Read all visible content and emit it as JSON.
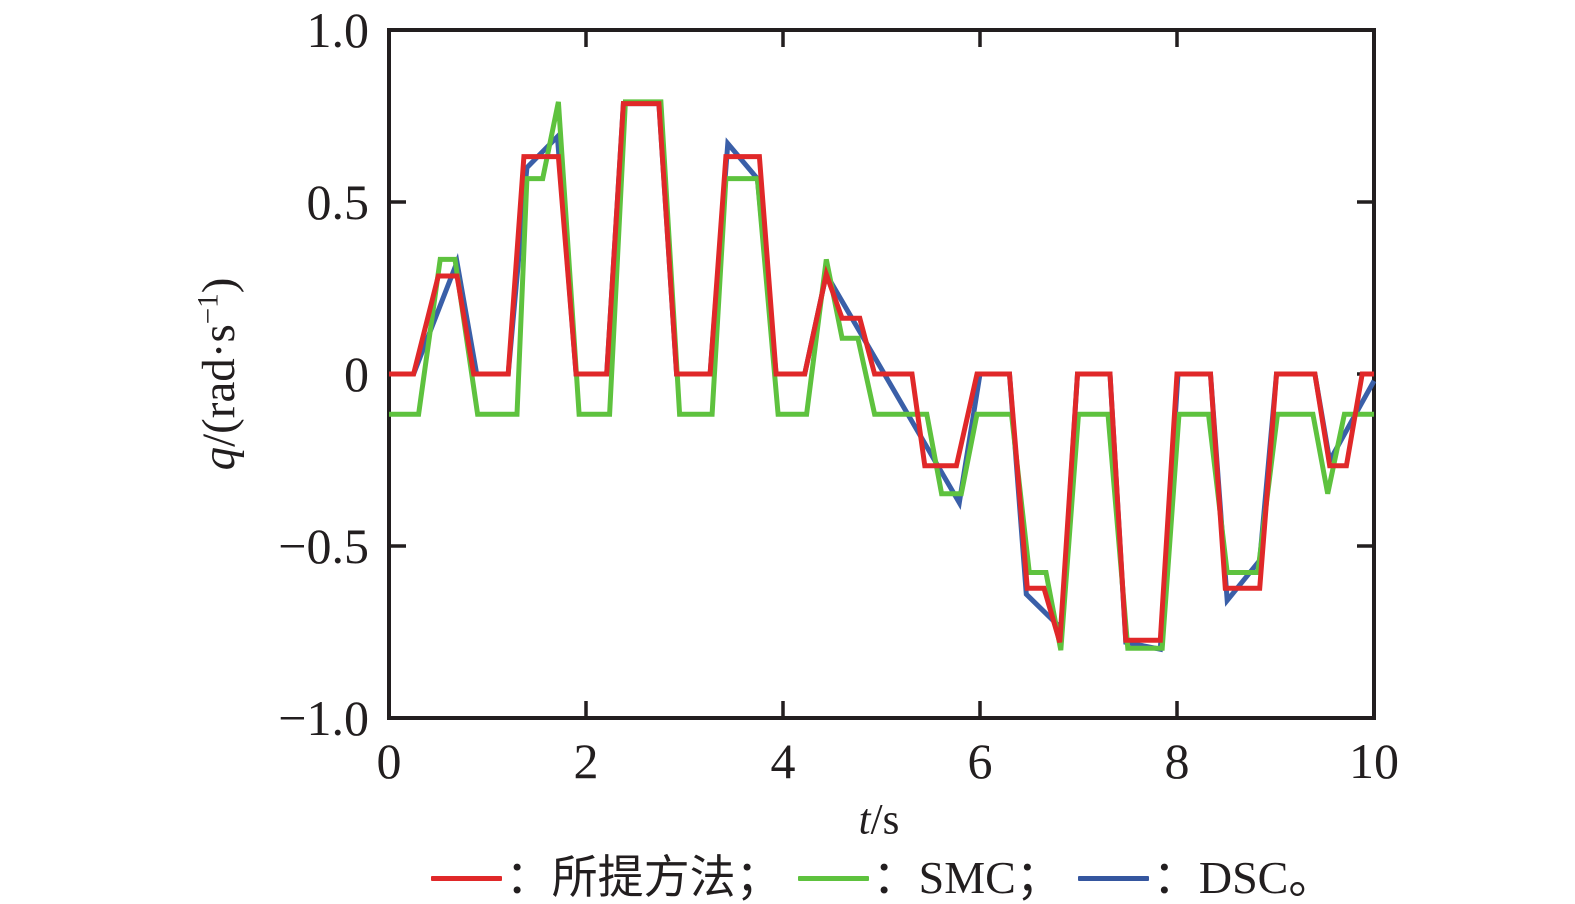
{
  "figure": {
    "xlabel": {
      "italic_part": "t",
      "rest": "/s"
    },
    "ylabel": {
      "italic_part": "q",
      "mid": "/(rad·s",
      "sup": "−1",
      "post": ")"
    }
  },
  "legend": [
    {
      "name": "proposed-method",
      "label": "：所提方法；",
      "color": "#e02829"
    },
    {
      "name": "smc",
      "label": "：SMC；",
      "color": "#5ec23e"
    },
    {
      "name": "dsc",
      "label": "：DSC。",
      "color": "#35569f"
    }
  ],
  "axes": {
    "box_color": "#221e1f",
    "tick_length": 17,
    "tick_label_color": "#221e1f"
  },
  "chart_data": {
    "type": "line",
    "title": "",
    "xlabel": "t/s",
    "ylabel": "q/(rad·s−1)",
    "xlim": [
      0,
      10
    ],
    "ylim": [
      -1.0,
      1.0
    ],
    "grid": false,
    "legend_position": "below",
    "xticks": {
      "values": [
        0,
        2,
        4,
        6,
        8,
        10
      ],
      "labels": [
        "0",
        "2",
        "4",
        "6",
        "8",
        "10"
      ]
    },
    "yticks": {
      "values": [
        1.0,
        0.5,
        0,
        -0.5,
        -1.0
      ],
      "labels": [
        "1.0",
        "0.5",
        "0",
        "−0.5",
        "−1.0"
      ]
    },
    "series": [
      {
        "name": "所提方法",
        "color": "#e02829",
        "points": [
          [
            0,
            0
          ],
          [
            0.25,
            0
          ],
          [
            0.5,
            0.285
          ],
          [
            0.69,
            0.285
          ],
          [
            0.86,
            0
          ],
          [
            1.21,
            0
          ],
          [
            1.37,
            0.632
          ],
          [
            1.72,
            0.632
          ],
          [
            1.9,
            0
          ],
          [
            2.21,
            0
          ],
          [
            2.38,
            0.786
          ],
          [
            2.74,
            0.786
          ],
          [
            2.92,
            0
          ],
          [
            3.26,
            0
          ],
          [
            3.42,
            0.632
          ],
          [
            3.76,
            0.632
          ],
          [
            3.93,
            0
          ],
          [
            4.22,
            0
          ],
          [
            4.44,
            0.29
          ],
          [
            4.6,
            0.162
          ],
          [
            4.78,
            0.162
          ],
          [
            4.93,
            0
          ],
          [
            5.31,
            0
          ],
          [
            5.44,
            -0.267
          ],
          [
            5.76,
            -0.267
          ],
          [
            5.97,
            0
          ],
          [
            6.3,
            0
          ],
          [
            6.48,
            -0.623
          ],
          [
            6.65,
            -0.623
          ],
          [
            6.81,
            -0.78
          ],
          [
            6.99,
            0
          ],
          [
            7.32,
            0
          ],
          [
            7.48,
            -0.774
          ],
          [
            7.83,
            -0.774
          ],
          [
            8.0,
            0
          ],
          [
            8.34,
            0
          ],
          [
            8.49,
            -0.623
          ],
          [
            8.84,
            -0.623
          ],
          [
            9.01,
            0
          ],
          [
            9.4,
            0
          ],
          [
            9.55,
            -0.267
          ],
          [
            9.72,
            -0.267
          ],
          [
            9.88,
            0
          ],
          [
            10,
            0
          ]
        ]
      },
      {
        "name": "SMC",
        "color": "#5ec23e",
        "points": [
          [
            0,
            -0.117
          ],
          [
            0.3,
            -0.117
          ],
          [
            0.52,
            0.333
          ],
          [
            0.67,
            0.333
          ],
          [
            0.9,
            -0.117
          ],
          [
            1.3,
            -0.117
          ],
          [
            1.4,
            0.568
          ],
          [
            1.56,
            0.568
          ],
          [
            1.72,
            0.791
          ],
          [
            1.93,
            -0.117
          ],
          [
            2.24,
            -0.117
          ],
          [
            2.4,
            0.791
          ],
          [
            2.76,
            0.791
          ],
          [
            2.95,
            -0.117
          ],
          [
            3.28,
            -0.117
          ],
          [
            3.42,
            0.568
          ],
          [
            3.74,
            0.568
          ],
          [
            3.95,
            -0.117
          ],
          [
            4.24,
            -0.117
          ],
          [
            4.44,
            0.333
          ],
          [
            4.6,
            0.104
          ],
          [
            4.76,
            0.104
          ],
          [
            4.93,
            -0.117
          ],
          [
            5.46,
            -0.117
          ],
          [
            5.61,
            -0.348
          ],
          [
            5.81,
            -0.348
          ],
          [
            5.97,
            -0.117
          ],
          [
            6.32,
            -0.117
          ],
          [
            6.5,
            -0.577
          ],
          [
            6.67,
            -0.577
          ],
          [
            6.82,
            -0.803
          ],
          [
            7.0,
            -0.117
          ],
          [
            7.3,
            -0.117
          ],
          [
            7.5,
            -0.797
          ],
          [
            7.85,
            -0.797
          ],
          [
            8.02,
            -0.117
          ],
          [
            8.32,
            -0.117
          ],
          [
            8.51,
            -0.577
          ],
          [
            8.82,
            -0.577
          ],
          [
            9.02,
            -0.117
          ],
          [
            9.38,
            -0.117
          ],
          [
            9.53,
            -0.348
          ],
          [
            9.7,
            -0.117
          ],
          [
            10,
            -0.117
          ]
        ]
      },
      {
        "name": "DSC",
        "color": "#3a5fa8",
        "points": [
          [
            0,
            0
          ],
          [
            0.25,
            0
          ],
          [
            0.69,
            0.325
          ],
          [
            0.89,
            0
          ],
          [
            1.21,
            0
          ],
          [
            1.4,
            0.6
          ],
          [
            1.71,
            0.69
          ],
          [
            1.9,
            0
          ],
          [
            2.21,
            0
          ],
          [
            2.38,
            0.786
          ],
          [
            2.74,
            0.786
          ],
          [
            2.92,
            0
          ],
          [
            3.26,
            0
          ],
          [
            3.44,
            0.67
          ],
          [
            3.74,
            0.568
          ],
          [
            3.93,
            0
          ],
          [
            4.22,
            0
          ],
          [
            4.44,
            0.29
          ],
          [
            5.79,
            -0.374
          ],
          [
            6.0,
            0
          ],
          [
            6.3,
            0
          ],
          [
            6.47,
            -0.64
          ],
          [
            6.79,
            -0.73
          ],
          [
            6.82,
            -0.765
          ],
          [
            6.99,
            0
          ],
          [
            7.32,
            0
          ],
          [
            7.48,
            -0.78
          ],
          [
            7.83,
            -0.8
          ],
          [
            8.01,
            0
          ],
          [
            8.34,
            0
          ],
          [
            8.51,
            -0.658
          ],
          [
            8.84,
            -0.542
          ],
          [
            9.01,
            0
          ],
          [
            9.4,
            0
          ],
          [
            9.55,
            -0.252
          ],
          [
            10,
            -0.02
          ]
        ]
      }
    ]
  }
}
